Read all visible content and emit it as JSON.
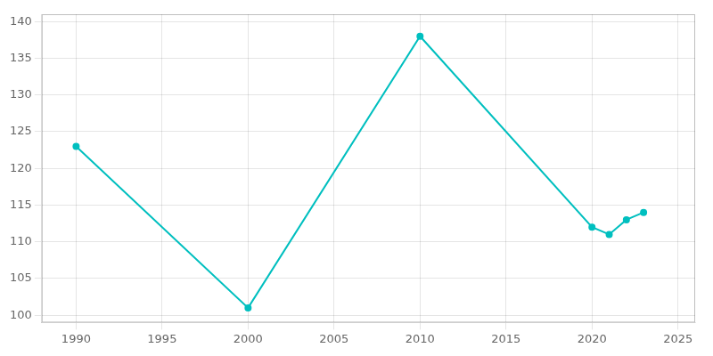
{
  "chart_data": {
    "type": "line",
    "x": [
      1990,
      2000,
      2010,
      2020,
      2021,
      2022,
      2023
    ],
    "values": [
      123,
      101,
      138,
      112,
      111,
      113,
      114
    ],
    "color": "#00BFBF",
    "marker": "circle",
    "xlim": [
      1988,
      2026
    ],
    "ylim": [
      99,
      141
    ],
    "xticks": [
      1990,
      1995,
      2000,
      2005,
      2010,
      2015,
      2020,
      2025
    ],
    "yticks": [
      100,
      105,
      110,
      115,
      120,
      125,
      130,
      135,
      140
    ],
    "grid": true
  }
}
